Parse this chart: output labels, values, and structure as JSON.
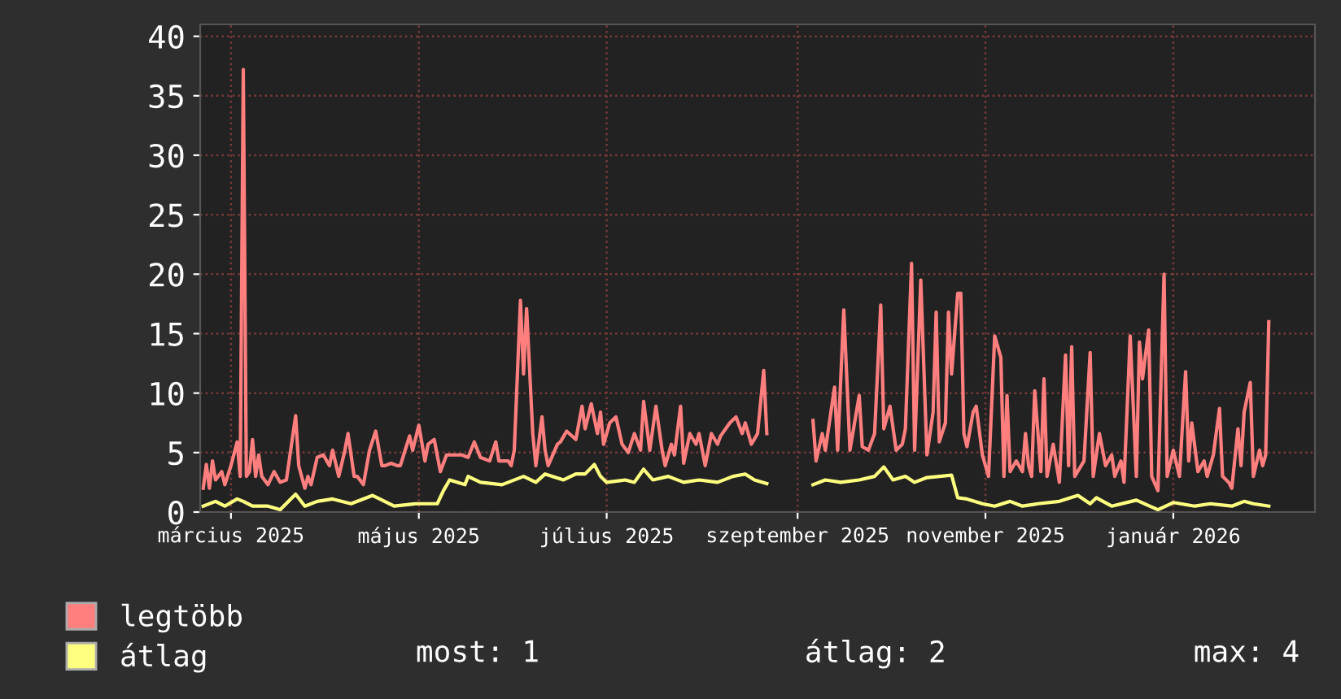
{
  "chart_data": {
    "type": "line",
    "xlim": [
      "2025-02-19",
      "2026-02-16"
    ],
    "ylim": [
      0,
      41
    ],
    "yticks": [
      0,
      5,
      10,
      15,
      20,
      25,
      30,
      35,
      40
    ],
    "xticks": [
      {
        "value": "2025-03-01",
        "label": "március 2025"
      },
      {
        "value": "2025-05-01",
        "label": "május 2025"
      },
      {
        "value": "2025-07-01",
        "label": "július 2025"
      },
      {
        "value": "2025-09-01",
        "label": "szeptember 2025"
      },
      {
        "value": "2025-11-01",
        "label": "november 2025"
      },
      {
        "value": "2026-01-01",
        "label": "január 2026"
      }
    ],
    "grid": true,
    "legend": "bottom left",
    "annotations": [
      "most: 1",
      "átlag: 2",
      "max: 4"
    ],
    "series": [
      {
        "name": "legtöbb",
        "color": "#ff7f7f",
        "x": [
          "2025-02-20",
          "2025-02-21",
          "2025-02-22",
          "2025-02-23",
          "2025-02-24",
          "2025-02-26",
          "2025-02-27",
          "2025-03-01",
          "2025-03-03",
          "2025-03-04",
          "2025-03-05",
          "2025-03-06",
          "2025-03-07",
          "2025-03-08",
          "2025-03-09",
          "2025-03-10",
          "2025-03-11",
          "2025-03-13",
          "2025-03-15",
          "2025-03-17",
          "2025-03-19",
          "2025-03-22",
          "2025-03-23",
          "2025-03-25",
          "2025-03-26",
          "2025-03-27",
          "2025-03-29",
          "2025-03-31",
          "2025-04-02",
          "2025-04-03",
          "2025-04-05",
          "2025-04-07",
          "2025-04-08",
          "2025-04-10",
          "2025-04-11",
          "2025-04-13",
          "2025-04-15",
          "2025-04-17",
          "2025-04-19",
          "2025-04-20",
          "2025-04-22",
          "2025-04-24",
          "2025-04-25",
          "2025-04-28",
          "2025-04-29",
          "2025-05-01",
          "2025-05-03",
          "2025-05-04",
          "2025-05-06",
          "2025-05-08",
          "2025-05-10",
          "2025-05-13",
          "2025-05-15",
          "2025-05-17",
          "2025-05-19",
          "2025-05-21",
          "2025-05-24",
          "2025-05-26",
          "2025-05-27",
          "2025-05-30",
          "2025-05-31",
          "2025-06-01",
          "2025-06-03",
          "2025-06-04",
          "2025-06-05",
          "2025-06-07",
          "2025-06-08",
          "2025-06-10",
          "2025-06-11",
          "2025-06-12",
          "2025-06-15",
          "2025-06-16",
          "2025-06-18",
          "2025-06-21",
          "2025-06-23",
          "2025-06-24",
          "2025-06-26",
          "2025-06-28",
          "2025-06-29",
          "2025-06-30",
          "2025-07-02",
          "2025-07-04",
          "2025-07-06",
          "2025-07-08",
          "2025-07-10",
          "2025-07-12",
          "2025-07-13",
          "2025-07-15",
          "2025-07-17",
          "2025-07-19",
          "2025-07-20",
          "2025-07-22",
          "2025-07-23",
          "2025-07-25",
          "2025-07-26",
          "2025-07-28",
          "2025-07-30",
          "2025-07-31",
          "2025-08-02",
          "2025-08-04",
          "2025-08-06",
          "2025-08-07",
          "2025-08-10",
          "2025-08-12",
          "2025-08-14",
          "2025-08-15",
          "2025-08-17",
          "2025-08-19",
          "2025-08-21",
          "2025-08-22",
          "2025-08-29",
          "2025-09-06",
          "2025-09-07",
          "2025-09-09",
          "2025-09-10",
          "2025-09-13",
          "2025-09-14",
          "2025-09-16",
          "2025-09-18",
          "2025-09-21",
          "2025-09-22",
          "2025-09-24",
          "2025-09-26",
          "2025-09-28",
          "2025-09-29",
          "2025-10-01",
          "2025-10-03",
          "2025-10-05",
          "2025-10-06",
          "2025-10-08",
          "2025-10-09",
          "2025-10-11",
          "2025-10-13",
          "2025-10-15",
          "2025-10-16",
          "2025-10-17",
          "2025-10-19",
          "2025-10-20",
          "2025-10-21",
          "2025-10-23",
          "2025-10-24",
          "2025-10-25",
          "2025-10-26",
          "2025-10-28",
          "2025-10-29",
          "2025-10-31",
          "2025-11-02",
          "2025-11-04",
          "2025-11-06",
          "2025-11-07",
          "2025-11-08",
          "2025-11-09",
          "2025-11-11",
          "2025-11-13",
          "2025-11-14",
          "2025-11-15",
          "2025-11-16",
          "2025-11-17",
          "2025-11-19",
          "2025-11-20",
          "2025-11-21",
          "2025-11-23",
          "2025-11-25",
          "2025-11-27",
          "2025-11-28",
          "2025-11-29",
          "2025-11-30",
          "2025-12-03",
          "2025-12-05",
          "2025-12-06",
          "2025-12-08",
          "2025-12-10",
          "2025-12-12",
          "2025-12-13",
          "2025-12-15",
          "2025-12-16",
          "2025-12-18",
          "2025-12-20",
          "2025-12-21",
          "2025-12-22",
          "2025-12-24",
          "2025-12-25",
          "2025-12-27",
          "2025-12-29",
          "2025-12-30",
          "2026-01-01",
          "2026-01-03",
          "2026-01-05",
          "2026-01-06",
          "2026-01-07",
          "2026-01-09",
          "2026-01-11",
          "2026-01-12",
          "2026-01-14",
          "2026-01-16",
          "2026-01-17",
          "2026-01-19",
          "2026-01-20",
          "2026-01-22",
          "2026-01-23",
          "2026-01-24",
          "2026-01-26",
          "2026-01-27",
          "2026-01-29",
          "2026-01-30",
          "2026-01-31",
          "2026-02-01"
        ],
        "values": [
          2.0,
          4.0,
          2.0,
          4.3,
          2.7,
          3.4,
          2.3,
          3.9,
          5.9,
          3.0,
          37.2,
          3.0,
          3.4,
          6.1,
          3.0,
          4.8,
          3.0,
          2.3,
          3.4,
          2.5,
          2.7,
          8.1,
          3.9,
          2.0,
          3.0,
          2.3,
          4.6,
          4.8,
          3.9,
          5.2,
          3.0,
          5.2,
          6.6,
          3.0,
          3.0,
          2.3,
          5.2,
          6.8,
          3.9,
          3.9,
          4.1,
          3.9,
          3.9,
          6.4,
          5.2,
          7.3,
          4.3,
          5.7,
          6.1,
          3.4,
          4.8,
          4.8,
          4.8,
          4.6,
          5.9,
          4.6,
          4.3,
          5.9,
          4.3,
          4.3,
          3.9,
          5.2,
          17.8,
          11.6,
          17.1,
          6.6,
          3.9,
          8.0,
          5.2,
          3.9,
          5.7,
          5.9,
          6.8,
          6.1,
          8.9,
          7.0,
          9.1,
          6.6,
          8.4,
          5.7,
          7.5,
          8.0,
          5.7,
          5.0,
          6.6,
          5.2,
          9.3,
          5.2,
          8.9,
          5.2,
          3.9,
          5.7,
          4.8,
          8.9,
          4.1,
          6.6,
          5.7,
          6.6,
          3.9,
          6.6,
          5.7,
          6.4,
          7.5,
          8.0,
          6.6,
          7.5,
          5.7,
          6.6,
          11.9,
          6.6,
          null,
          7.7,
          4.3,
          6.6,
          5.2,
          10.5,
          5.2,
          17.0,
          5.2,
          9.8,
          5.5,
          5.2,
          6.6,
          17.4,
          7.0,
          8.9,
          5.2,
          5.7,
          7.0,
          20.9,
          5.2,
          19.5,
          4.8,
          8.4,
          16.8,
          5.9,
          7.5,
          16.8,
          11.6,
          18.4,
          18.4,
          6.6,
          5.5,
          8.4,
          8.9,
          4.8,
          3.0,
          14.8,
          13.0,
          3.0,
          9.8,
          3.4,
          4.3,
          3.4,
          6.6,
          3.9,
          3.0,
          10.2,
          3.4,
          11.2,
          3.0,
          5.7,
          2.5,
          13.2,
          3.9,
          13.9,
          3.0,
          4.3,
          13.4,
          3.0,
          6.6,
          3.9,
          4.8,
          3.0,
          4.3,
          2.5,
          14.8,
          3.0,
          14.3,
          11.2,
          15.3,
          3.0,
          1.8,
          20.0,
          3.0,
          5.2,
          3.0,
          11.8,
          4.3,
          7.5,
          3.4,
          4.3,
          3.0,
          4.8,
          8.7,
          3.0,
          2.5,
          2.0,
          7.0,
          3.9,
          8.4,
          10.9,
          3.0,
          5.2,
          3.9,
          4.8,
          16.0
        ]
      },
      {
        "name": "átlag",
        "color": "#ffff80",
        "x": [
          "2025-02-20",
          "2025-02-24",
          "2025-02-27",
          "2025-03-03",
          "2025-03-05",
          "2025-03-08",
          "2025-03-13",
          "2025-03-17",
          "2025-03-22",
          "2025-03-25",
          "2025-03-29",
          "2025-04-03",
          "2025-04-09",
          "2025-04-16",
          "2025-04-23",
          "2025-04-30",
          "2025-05-07",
          "2025-05-09",
          "2025-05-11",
          "2025-05-16",
          "2025-05-17",
          "2025-05-21",
          "2025-05-28",
          "2025-06-04",
          "2025-06-08",
          "2025-06-11",
          "2025-06-17",
          "2025-06-21",
          "2025-06-24",
          "2025-06-27",
          "2025-06-29",
          "2025-07-01",
          "2025-07-07",
          "2025-07-10",
          "2025-07-13",
          "2025-07-16",
          "2025-07-21",
          "2025-07-26",
          "2025-07-31",
          "2025-08-06",
          "2025-08-11",
          "2025-08-15",
          "2025-08-18",
          "2025-08-22",
          "2025-08-29",
          "2025-09-06",
          "2025-09-10",
          "2025-09-15",
          "2025-09-21",
          "2025-09-26",
          "2025-09-29",
          "2025-10-02",
          "2025-10-06",
          "2025-10-09",
          "2025-10-13",
          "2025-10-17",
          "2025-10-21",
          "2025-10-23",
          "2025-10-26",
          "2025-10-31",
          "2025-11-04",
          "2025-11-09",
          "2025-11-13",
          "2025-11-18",
          "2025-11-25",
          "2025-12-01",
          "2025-12-05",
          "2025-12-07",
          "2025-12-12",
          "2025-12-20",
          "2025-12-27",
          "2026-01-01",
          "2026-01-08",
          "2026-01-13",
          "2026-01-20",
          "2026-01-24",
          "2026-01-27",
          "2026-02-01"
        ],
        "values": [
          0.5,
          0.9,
          0.5,
          1.1,
          0.9,
          0.5,
          0.5,
          0.2,
          1.5,
          0.5,
          0.9,
          1.1,
          0.7,
          1.4,
          0.5,
          0.7,
          0.7,
          1.8,
          2.7,
          2.3,
          3.0,
          2.5,
          2.3,
          3.0,
          2.5,
          3.2,
          2.7,
          3.2,
          3.2,
          4.0,
          3.0,
          2.5,
          2.7,
          2.5,
          3.6,
          2.7,
          3.0,
          2.5,
          2.7,
          2.5,
          3.0,
          3.2,
          2.7,
          2.4,
          null,
          2.3,
          2.7,
          2.5,
          2.7,
          3.0,
          3.8,
          2.7,
          3.0,
          2.5,
          2.9,
          3.0,
          3.1,
          1.2,
          1.1,
          0.7,
          0.5,
          0.9,
          0.5,
          0.7,
          0.9,
          1.4,
          0.7,
          1.2,
          0.5,
          1.0,
          0.2,
          0.8,
          0.5,
          0.7,
          0.5,
          0.9,
          0.7,
          0.5
        ]
      }
    ]
  }
}
